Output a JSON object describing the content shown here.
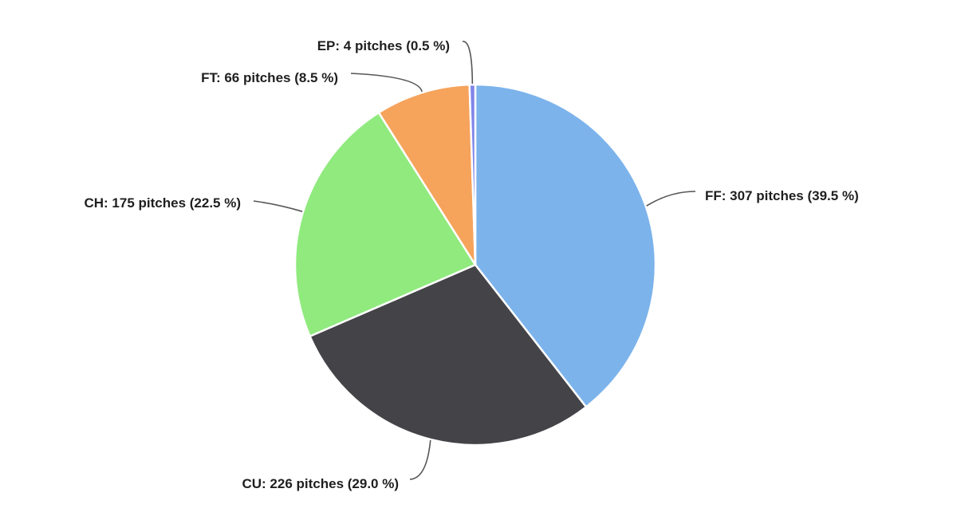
{
  "chart_data": {
    "type": "pie",
    "title": "",
    "slices": [
      {
        "name": "FF",
        "value": 307,
        "percent": 39.5,
        "label": "FF: 307 pitches (39.5 %)",
        "color": "#7cb3eb"
      },
      {
        "name": "CU",
        "value": 226,
        "percent": 29.0,
        "label": "CU: 226 pitches (29.0 %)",
        "color": "#434348"
      },
      {
        "name": "CH",
        "value": 175,
        "percent": 22.5,
        "label": "CH: 175 pitches (22.5 %)",
        "color": "#90ea7e"
      },
      {
        "name": "FT",
        "value": 66,
        "percent": 8.5,
        "label": "FT: 66 pitches (8.5 %)",
        "color": "#f6a35c"
      },
      {
        "name": "EP",
        "value": 4,
        "percent": 0.5,
        "label": "EP: 4 pitches (0.5 %)",
        "color": "#8085e9"
      }
    ],
    "legend": "none",
    "start_angle": "12 o'clock, clockwise"
  }
}
